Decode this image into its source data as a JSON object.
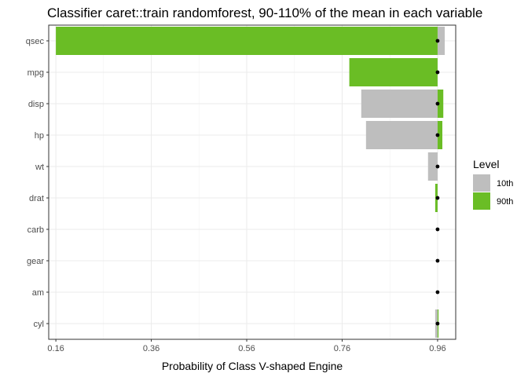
{
  "chart_data": {
    "type": "bar",
    "title": "Classifier caret::train randomforest, 90-110% of the mean in each variable",
    "xlabel": "Probability of Class V-shaped Engine",
    "ylabel": "",
    "baseline": 0.96,
    "xlim": [
      0.145,
      0.998
    ],
    "x_ticks": [
      0.16,
      0.36,
      0.56,
      0.76,
      0.96
    ],
    "x_tick_labels": [
      "0.16",
      "0.36",
      "0.56",
      "0.76",
      "0.96"
    ],
    "categories": [
      "qsec",
      "mpg",
      "disp",
      "hp",
      "wt",
      "drat",
      "carb",
      "gear",
      "am",
      "cyl"
    ],
    "series": [
      {
        "name": "10th",
        "color": "#bebebe",
        "values": [
          0.975,
          0.96,
          0.8,
          0.81,
          0.94,
          0.96,
          0.96,
          0.96,
          0.96,
          0.955
        ]
      },
      {
        "name": "90th",
        "color": "#6abd25",
        "values": [
          0.16,
          0.775,
          0.972,
          0.97,
          0.96,
          0.955,
          0.96,
          0.96,
          0.96,
          0.962
        ]
      }
    ],
    "legend": {
      "title": "Level",
      "position": "right"
    },
    "grid": true
  }
}
